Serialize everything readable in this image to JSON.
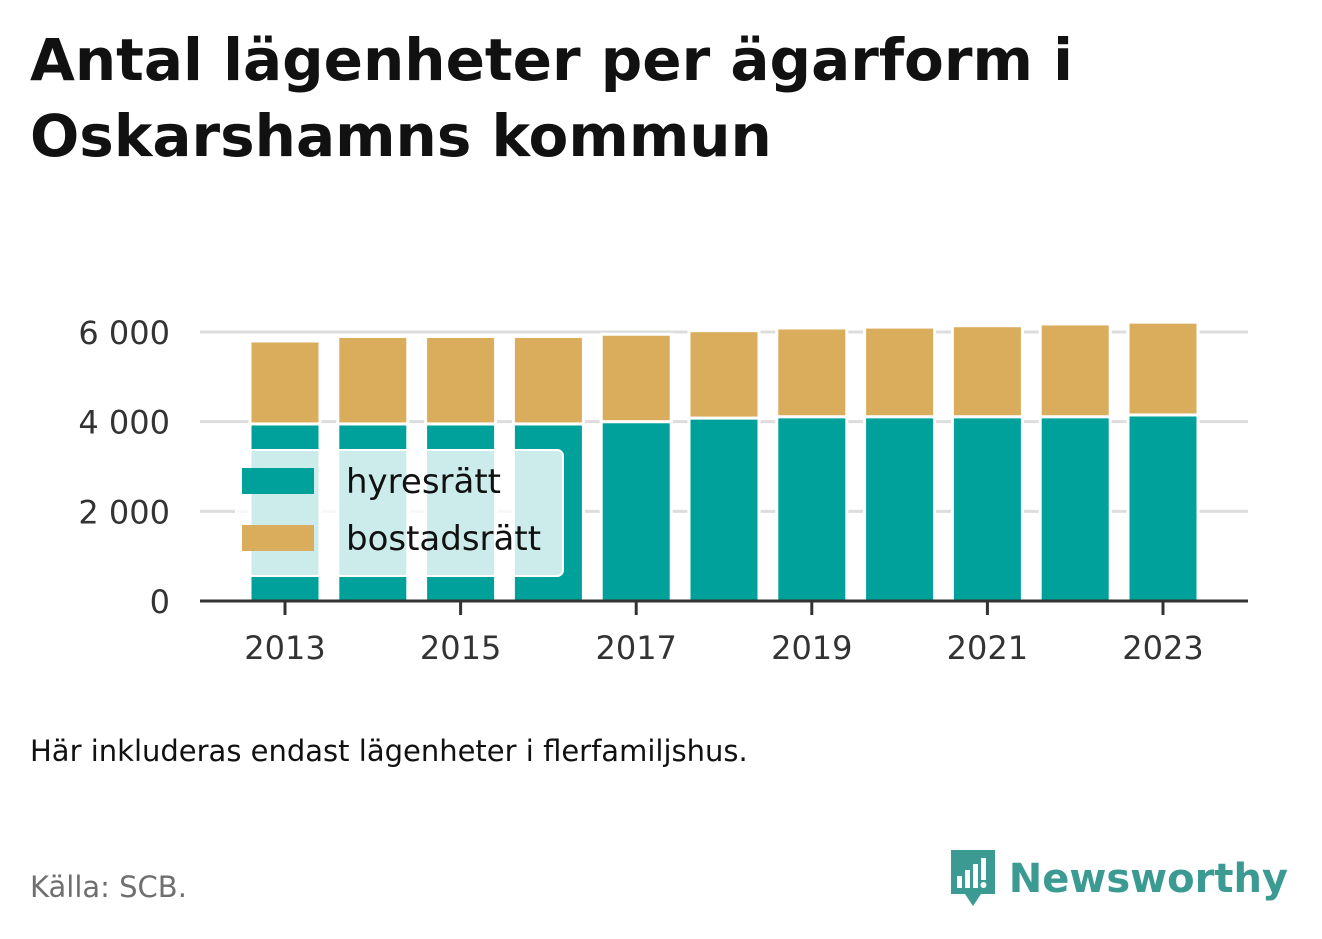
{
  "title": "Antal lägenheter per ägarform i Oskarshamns kommun",
  "note": "Här inkluderas endast lägenheter i flerfamiljshus.",
  "source": "Källa: SCB.",
  "brand": {
    "name": "Newsworthy",
    "icon": "newsworthy-logo-icon"
  },
  "colors": {
    "hyresratt": "#00a19a",
    "bostadsratt": "#d9ad5b",
    "grid": "#dddddd",
    "axis": "#333333",
    "brand": "#3b9a91"
  },
  "chart_data": {
    "type": "bar",
    "stacked": true,
    "categories": [
      "2013",
      "2014",
      "2015",
      "2016",
      "2017",
      "2018",
      "2019",
      "2020",
      "2021",
      "2022",
      "2023"
    ],
    "x_tick_labels": [
      "2013",
      "2015",
      "2017",
      "2019",
      "2021",
      "2023"
    ],
    "series": [
      {
        "name": "hyresrätt",
        "color": "#00a19a",
        "values": [
          3950,
          3950,
          3950,
          3950,
          4000,
          4080,
          4110,
          4110,
          4110,
          4110,
          4150
        ]
      },
      {
        "name": "bostadsrätt",
        "color": "#d9ad5b",
        "values": [
          1850,
          1950,
          1950,
          1950,
          1950,
          1950,
          1980,
          2000,
          2030,
          2070,
          2070
        ]
      }
    ],
    "y_ticks": [
      0,
      2000,
      4000,
      6000
    ],
    "y_tick_labels": [
      "0",
      "2 000",
      "4 000",
      "6 000"
    ],
    "ylim": [
      0,
      6000
    ],
    "grid": true,
    "legend": {
      "position": "left-center",
      "entries": [
        "hyresrätt",
        "bostadsrätt"
      ]
    }
  }
}
